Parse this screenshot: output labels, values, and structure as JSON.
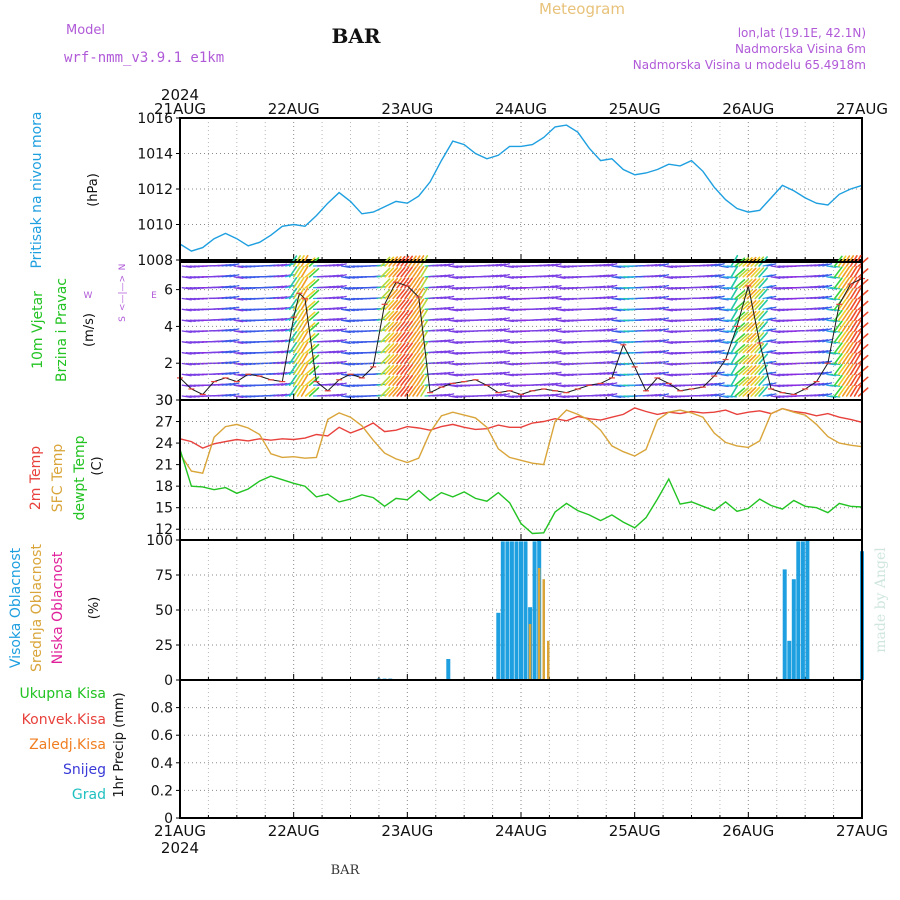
{
  "header": {
    "model_label": "Model",
    "model_name": "wrf-nmm_v3.9.1  e1km",
    "station": "BAR",
    "title": "Meteogram",
    "location": "lon,lat (19.1E, 42.1N)",
    "elevation": "Nadmorska Visina 6m",
    "model_elevation": "Nadmorska Visina u modelu 65.4918m"
  },
  "footer": {
    "station": "BAR",
    "credit": "made by Angel"
  },
  "colors": {
    "pressure": "#1e9fe0",
    "temp2m": "#e8413c",
    "sfc_temp": "#d9a53a",
    "dewpt": "#22c322",
    "high_cloud": "#1e9fe0",
    "mid_cloud": "#d9a53a",
    "low_cloud": "#e0209a",
    "total_precip": "#22c322",
    "conv_precip": "#e8413c",
    "frz_precip": "#f07e20",
    "snow": "#3a3ad8",
    "graupel": "#20c0c0",
    "purple": "#b05ad8"
  },
  "time_axis": {
    "year": "2024",
    "labels": [
      "21AUG",
      "22AUG",
      "23AUG",
      "24AUG",
      "25AUG",
      "26AUG",
      "27AUG"
    ]
  },
  "panels": {
    "pressure": {
      "ylabel_1": "Pritisak na nivou mora",
      "unit": "(hPa)"
    },
    "wind": {
      "ylabel_1": "10m Vjetar",
      "ylabel_2": "Brzina i Pravac",
      "unit": "(m/s)",
      "compass_n": "N",
      "compass_s": "S",
      "compass_w": "W",
      "compass_e": "E",
      "compass_cross": "<—|—>"
    },
    "temp": {
      "ylabel_1": "2m Temp",
      "ylabel_2": "SFC Temp",
      "ylabel_3": "dewpt Temp",
      "unit": "(C)"
    },
    "cloud": {
      "ylabel_1": "Visoka Oblacnost",
      "ylabel_2": "Srednja Oblacnost",
      "ylabel_3": "Niska Oblacnost",
      "unit": "(%)"
    },
    "precip": {
      "label_total": "Ukupna Kisa",
      "label_conv": "Konvek.Kisa",
      "label_frz": "Zaledj.Kisa",
      "label_snow": "Snijeg",
      "label_grad": "Grad",
      "unit": "1hr Precip (mm)"
    }
  },
  "chart_data": [
    {
      "type": "line",
      "title": "Pritisak na nivou mora",
      "ylabel": "(hPa)",
      "ylim": [
        1008,
        1016
      ],
      "yticks": [
        "1008",
        "1010",
        "1012",
        "1014",
        "1016"
      ],
      "x_unit": "days since 21AUG 00Z",
      "series": [
        {
          "name": "Pritisak na nivou mora",
          "x": [
            0,
            0.1,
            0.2,
            0.3,
            0.4,
            0.5,
            0.6,
            0.7,
            0.8,
            0.9,
            1.0,
            1.1,
            1.2,
            1.3,
            1.4,
            1.5,
            1.6,
            1.7,
            1.8,
            1.9,
            2.0,
            2.1,
            2.2,
            2.3,
            2.4,
            2.5,
            2.6,
            2.7,
            2.8,
            2.9,
            3.0,
            3.1,
            3.2,
            3.3,
            3.4,
            3.5,
            3.6,
            3.7,
            3.8,
            3.9,
            4.0,
            4.1,
            4.2,
            4.3,
            4.4,
            4.5,
            4.6,
            4.7,
            4.8,
            4.9,
            5.0,
            5.1,
            5.2,
            5.3,
            5.4,
            5.5,
            5.6,
            5.7,
            5.8,
            5.9,
            6.0
          ],
          "values": [
            1008.9,
            1008.5,
            1008.7,
            1009.2,
            1009.5,
            1009.2,
            1008.8,
            1009.0,
            1009.4,
            1009.9,
            1010.0,
            1009.9,
            1010.5,
            1011.2,
            1011.8,
            1011.3,
            1010.6,
            1010.7,
            1011.0,
            1011.3,
            1011.2,
            1011.6,
            1012.4,
            1013.6,
            1014.7,
            1014.5,
            1014.0,
            1013.7,
            1013.9,
            1014.4,
            1014.4,
            1014.5,
            1014.9,
            1015.5,
            1015.6,
            1015.2,
            1014.3,
            1013.6,
            1013.7,
            1013.1,
            1012.8,
            1012.9,
            1013.1,
            1013.4,
            1013.3,
            1013.6,
            1013.0,
            1012.1,
            1011.4,
            1010.9,
            1010.7,
            1010.8,
            1011.5,
            1012.2,
            1011.9,
            1011.5,
            1011.2,
            1011.1,
            1011.7,
            1012.0,
            1012.2
          ]
        }
      ]
    },
    {
      "type": "line",
      "title": "10m Vjetar Brzina i Pravac",
      "ylabel": "(m/s)",
      "ylim": [
        0,
        7.5
      ],
      "yticks": [
        "0",
        "2",
        "4",
        "6"
      ],
      "x_unit": "days since 21AUG 00Z",
      "series": [
        {
          "name": "10m Vjetar Brzina",
          "x": [
            0,
            0.1,
            0.2,
            0.3,
            0.4,
            0.5,
            0.6,
            0.7,
            0.8,
            0.9,
            1.0,
            1.05,
            1.1,
            1.2,
            1.3,
            1.4,
            1.5,
            1.6,
            1.7,
            1.8,
            1.9,
            2.0,
            2.1,
            2.2,
            2.3,
            2.4,
            2.5,
            2.6,
            2.7,
            2.8,
            2.9,
            3.0,
            3.1,
            3.2,
            3.3,
            3.4,
            3.5,
            3.6,
            3.7,
            3.8,
            3.9,
            4.0,
            4.1,
            4.2,
            4.3,
            4.4,
            4.5,
            4.6,
            4.7,
            4.8,
            4.9,
            5.0,
            5.1,
            5.2,
            5.3,
            5.4,
            5.5,
            5.6,
            5.7,
            5.8,
            5.9,
            6.0
          ],
          "values": [
            1.2,
            0.6,
            0.3,
            1.0,
            1.2,
            1.0,
            1.4,
            1.3,
            1.1,
            1.0,
            4.5,
            5.8,
            5.5,
            1.0,
            0.5,
            1.1,
            1.4,
            1.2,
            1.8,
            5.2,
            6.4,
            6.2,
            5.6,
            0.4,
            0.7,
            0.9,
            1.0,
            1.1,
            0.8,
            0.4,
            0.5,
            0.3,
            0.5,
            0.6,
            0.5,
            0.4,
            0.6,
            0.8,
            0.9,
            1.2,
            3.0,
            1.8,
            0.5,
            1.2,
            0.9,
            0.5,
            0.6,
            0.7,
            1.3,
            2.2,
            4.0,
            6.2,
            3.1,
            0.6,
            0.4,
            0.3,
            0.6,
            1.0,
            2.0,
            5.2,
            6.3,
            6.6
          ]
        }
      ]
    },
    {
      "type": "line",
      "title": "2m Temp / SFC Temp / dewpt Temp",
      "ylabel": "(C)",
      "ylim": [
        10.5,
        30
      ],
      "yticks": [
        "12",
        "15",
        "18",
        "21",
        "24",
        "27",
        "30"
      ],
      "x_unit": "days since 21AUG 00Z",
      "series": [
        {
          "name": "2m Temp",
          "x": [
            0,
            0.1,
            0.2,
            0.3,
            0.4,
            0.5,
            0.6,
            0.7,
            0.8,
            0.9,
            1.0,
            1.1,
            1.2,
            1.3,
            1.4,
            1.5,
            1.6,
            1.7,
            1.8,
            1.9,
            2.0,
            2.1,
            2.2,
            2.3,
            2.4,
            2.5,
            2.6,
            2.7,
            2.8,
            2.9,
            3.0,
            3.1,
            3.2,
            3.3,
            3.4,
            3.5,
            3.6,
            3.7,
            3.8,
            3.9,
            4.0,
            4.1,
            4.2,
            4.3,
            4.4,
            4.5,
            4.6,
            4.7,
            4.8,
            4.9,
            5.0,
            5.1,
            5.2,
            5.3,
            5.4,
            5.5,
            5.6,
            5.7,
            5.8,
            5.9,
            6.0
          ],
          "values": [
            24.6,
            24.2,
            23.3,
            23.9,
            24.2,
            24.5,
            24.3,
            24.6,
            24.4,
            24.6,
            24.5,
            24.7,
            25.2,
            25.0,
            26.2,
            25.4,
            26.0,
            26.8,
            25.6,
            25.8,
            26.3,
            26.1,
            25.8,
            26.3,
            26.6,
            26.2,
            25.9,
            26.0,
            26.5,
            26.2,
            26.2,
            26.8,
            27.0,
            27.4,
            27.1,
            27.7,
            27.4,
            27.2,
            27.6,
            28.0,
            28.9,
            28.4,
            28.0,
            28.3,
            28.1,
            28.4,
            28.2,
            28.3,
            28.6,
            28.0,
            28.3,
            28.5,
            28.1,
            28.8,
            28.4,
            28.2,
            27.8,
            28.1,
            27.6,
            27.3,
            26.9
          ]
        },
        {
          "name": "SFC Temp",
          "x": [
            0,
            0.1,
            0.2,
            0.3,
            0.4,
            0.5,
            0.6,
            0.7,
            0.8,
            0.9,
            1.0,
            1.1,
            1.2,
            1.3,
            1.4,
            1.5,
            1.6,
            1.7,
            1.8,
            1.9,
            2.0,
            2.1,
            2.2,
            2.3,
            2.4,
            2.5,
            2.6,
            2.7,
            2.8,
            2.9,
            3.0,
            3.1,
            3.2,
            3.3,
            3.4,
            3.5,
            3.6,
            3.7,
            3.8,
            3.9,
            4.0,
            4.1,
            4.2,
            4.3,
            4.4,
            4.5,
            4.6,
            4.7,
            4.8,
            4.9,
            5.0,
            5.1,
            5.2,
            5.3,
            5.4,
            5.5,
            5.6,
            5.7,
            5.8,
            5.9,
            6.0
          ],
          "values": [
            22.5,
            20.1,
            19.8,
            24.8,
            26.3,
            26.6,
            26.1,
            25.2,
            22.5,
            22.0,
            22.1,
            21.9,
            22.0,
            27.3,
            28.2,
            27.6,
            26.4,
            24.4,
            22.6,
            21.8,
            21.3,
            21.9,
            25.5,
            27.8,
            28.3,
            27.9,
            27.5,
            26.2,
            23.2,
            22.0,
            21.6,
            21.2,
            21.0,
            27.0,
            28.6,
            28.0,
            27.2,
            25.8,
            23.6,
            22.8,
            22.2,
            23.1,
            27.2,
            28.3,
            28.6,
            28.2,
            27.6,
            25.4,
            24.1,
            23.6,
            23.4,
            24.3,
            28.1,
            28.8,
            28.3,
            27.9,
            26.6,
            24.9,
            24.0,
            23.7,
            23.5
          ]
        },
        {
          "name": "dewpt Temp",
          "x": [
            0,
            0.1,
            0.2,
            0.3,
            0.4,
            0.5,
            0.6,
            0.7,
            0.8,
            0.9,
            1.0,
            1.1,
            1.2,
            1.3,
            1.4,
            1.5,
            1.6,
            1.7,
            1.8,
            1.9,
            2.0,
            2.1,
            2.2,
            2.3,
            2.4,
            2.5,
            2.6,
            2.7,
            2.8,
            2.9,
            3.0,
            3.1,
            3.2,
            3.3,
            3.4,
            3.5,
            3.6,
            3.7,
            3.8,
            3.9,
            4.0,
            4.1,
            4.2,
            4.3,
            4.4,
            4.5,
            4.6,
            4.7,
            4.8,
            4.9,
            5.0,
            5.1,
            5.2,
            5.3,
            5.4,
            5.5,
            5.6,
            5.7,
            5.8,
            5.9,
            6.0
          ],
          "values": [
            23.1,
            18.0,
            17.9,
            17.5,
            17.8,
            17.0,
            17.6,
            18.7,
            19.4,
            18.9,
            18.4,
            18.0,
            16.5,
            16.9,
            15.8,
            16.2,
            16.8,
            16.4,
            15.2,
            16.3,
            16.1,
            17.4,
            16.0,
            17.1,
            16.5,
            17.2,
            16.3,
            15.9,
            17.1,
            15.7,
            12.8,
            11.4,
            11.5,
            14.4,
            15.6,
            14.6,
            14.0,
            13.2,
            14.0,
            13.0,
            12.2,
            13.6,
            16.2,
            19.0,
            15.5,
            15.8,
            15.2,
            14.6,
            15.8,
            14.5,
            14.9,
            16.2,
            15.3,
            14.8,
            16.0,
            15.2,
            15.0,
            14.3,
            15.6,
            15.2,
            15.1
          ]
        }
      ]
    },
    {
      "type": "bar",
      "title": "Oblacnost",
      "ylabel": "(%)",
      "ylim": [
        0,
        100
      ],
      "yticks": [
        "0",
        "25",
        "50",
        "75",
        "100"
      ],
      "x_unit": "days since 21AUG 00Z",
      "series": [
        {
          "name": "Visoka Oblacnost",
          "x": [
            1.75,
            1.8,
            1.85,
            2.36,
            2.8,
            2.84,
            2.88,
            2.92,
            2.96,
            3.0,
            3.04,
            3.08,
            3.12,
            3.16,
            3.2,
            4.48,
            5.32,
            5.36,
            5.4,
            5.44,
            5.48,
            5.52,
            5.56,
            5.6,
            5.66,
            6.0
          ],
          "values": [
            1,
            1,
            1,
            15,
            48,
            99,
            99,
            99,
            99,
            99,
            99,
            52,
            99,
            100,
            0,
            0,
            79,
            28,
            72,
            99,
            99,
            100,
            0,
            0,
            0,
            92
          ]
        },
        {
          "name": "Srednja Oblacnost",
          "x": [
            3.08,
            3.12,
            3.16,
            3.2,
            3.24
          ],
          "values": [
            40,
            0,
            80,
            72,
            28
          ]
        },
        {
          "name": "Niska Oblacnost",
          "x": [
            0,
            6.0
          ],
          "values": [
            0,
            0
          ]
        }
      ]
    },
    {
      "type": "bar",
      "title": "1hr Precip",
      "ylabel": "1hr Precip (mm)",
      "ylim": [
        0,
        1.0
      ],
      "yticks": [
        "0",
        "0.2",
        "0.4",
        "0.6",
        "0.8"
      ],
      "series": [
        {
          "name": "Ukupna Kisa",
          "values": []
        },
        {
          "name": "Konvek.Kisa",
          "values": []
        },
        {
          "name": "Zaledj.Kisa",
          "values": []
        },
        {
          "name": "Snijeg",
          "values": []
        },
        {
          "name": "Grad",
          "values": []
        }
      ]
    }
  ]
}
